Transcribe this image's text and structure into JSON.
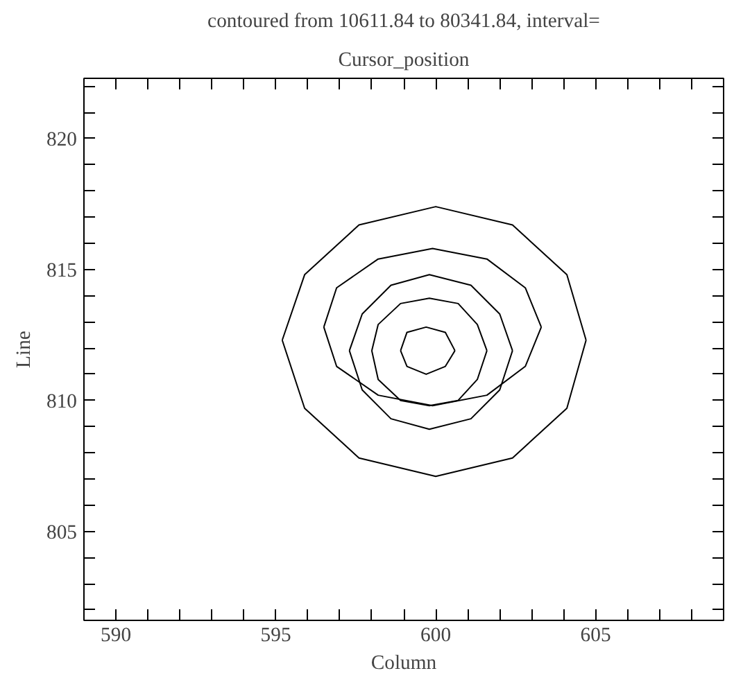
{
  "chart_data": {
    "type": "line",
    "title": "contoured from 10611.84 to 80341.84, interval=",
    "subtitle": "Cursor_position",
    "xlabel": "Column",
    "ylabel": "Line",
    "xlim": [
      589,
      609
    ],
    "ylim": [
      801.6,
      822.3
    ],
    "xticks": [
      {
        "value": 589,
        "label": null
      },
      590,
      {
        "value": 591,
        "label": null
      },
      {
        "value": 592,
        "label": null
      },
      {
        "value": 593,
        "label": null
      },
      {
        "value": 594,
        "label": null
      },
      595,
      {
        "value": 596,
        "label": null
      },
      {
        "value": 597,
        "label": null
      },
      {
        "value": 598,
        "label": null
      },
      {
        "value": 599,
        "label": null
      },
      600,
      {
        "value": 601,
        "label": null
      },
      {
        "value": 602,
        "label": null
      },
      {
        "value": 603,
        "label": null
      },
      {
        "value": 604,
        "label": null
      },
      605,
      {
        "value": 606,
        "label": null
      },
      {
        "value": 607,
        "label": null
      },
      {
        "value": 608,
        "label": null
      }
    ],
    "yticks": [
      {
        "value": 802,
        "label": null
      },
      {
        "value": 803,
        "label": null
      },
      {
        "value": 804,
        "label": null
      },
      805,
      {
        "value": 806,
        "label": null
      },
      {
        "value": 807,
        "label": null
      },
      {
        "value": 808,
        "label": null
      },
      {
        "value": 809,
        "label": null
      },
      810,
      {
        "value": 811,
        "label": null
      },
      {
        "value": 812,
        "label": null
      },
      {
        "value": 813,
        "label": null
      },
      {
        "value": 814,
        "label": null
      },
      815,
      {
        "value": 816,
        "label": null
      },
      {
        "value": 817,
        "label": null
      },
      {
        "value": 818,
        "label": null
      },
      {
        "value": 819,
        "label": null
      },
      820,
      {
        "value": 821,
        "label": null
      },
      {
        "value": 822,
        "label": null
      }
    ],
    "grid": false,
    "marker": "none",
    "line_style": "solid",
    "series": [
      {
        "color": "#000000",
        "x": [
          595.2,
          595.9,
          597.6,
          600.0,
          602.4,
          604.1,
          604.7
        ],
        "values": [
          812.3,
          814.8,
          816.7,
          817.4,
          816.7,
          814.8,
          812.3
        ]
      },
      {
        "color": "#000000",
        "x": [
          595.2,
          595.9,
          597.6,
          600.0,
          602.4,
          604.1,
          604.7
        ],
        "values": [
          812.3,
          809.7,
          807.8,
          807.1,
          807.8,
          809.7,
          812.3
        ]
      },
      {
        "color": "#000000",
        "x": [
          596.5,
          596.9,
          598.2,
          599.9,
          601.6,
          602.8,
          603.3
        ],
        "values": [
          812.8,
          814.3,
          815.4,
          815.8,
          815.4,
          814.3,
          812.8
        ]
      },
      {
        "color": "#000000",
        "x": [
          596.5,
          596.9,
          598.2,
          599.9,
          601.6,
          602.8,
          603.3
        ],
        "values": [
          812.8,
          811.3,
          810.2,
          809.8,
          810.2,
          811.3,
          812.8
        ]
      },
      {
        "color": "#000000",
        "x": [
          597.3,
          597.7,
          598.6,
          599.8,
          601.1,
          602.0,
          602.4
        ],
        "values": [
          811.9,
          813.3,
          814.4,
          814.8,
          814.4,
          813.3,
          811.9
        ]
      },
      {
        "color": "#000000",
        "x": [
          597.3,
          597.7,
          598.6,
          599.8,
          601.1,
          602.0,
          602.4
        ],
        "values": [
          811.9,
          810.4,
          809.3,
          808.9,
          809.3,
          810.4,
          811.9
        ]
      },
      {
        "color": "#000000",
        "x": [
          598.0,
          598.2,
          598.9,
          599.8,
          600.7,
          601.3,
          601.6
        ],
        "values": [
          811.9,
          812.9,
          813.7,
          813.9,
          813.7,
          812.9,
          811.9
        ]
      },
      {
        "color": "#000000",
        "x": [
          598.0,
          598.2,
          598.9,
          599.8,
          600.7,
          601.3,
          601.6
        ],
        "values": [
          811.9,
          810.8,
          810.0,
          809.8,
          810.0,
          810.8,
          811.9
        ]
      },
      {
        "color": "#000000",
        "x": [
          598.9,
          599.1,
          599.7,
          600.3,
          600.6
        ],
        "values": [
          811.9,
          812.6,
          812.8,
          812.6,
          811.9
        ]
      },
      {
        "color": "#000000",
        "x": [
          598.9,
          599.1,
          599.7,
          600.3,
          600.6
        ],
        "values": [
          811.9,
          811.3,
          811.0,
          811.3,
          811.9
        ]
      }
    ]
  }
}
